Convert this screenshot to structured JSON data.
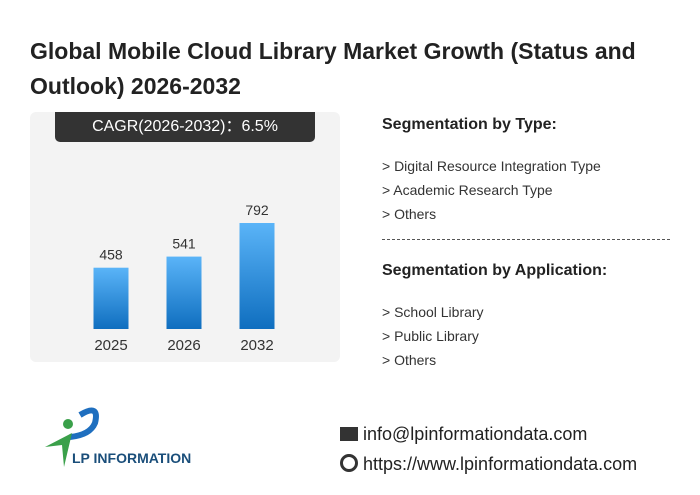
{
  "title": "Global Mobile Cloud Library Market Growth (Status and Outlook) 2026-2032",
  "cagr_label": "CAGR(2026-2032)：6.5%",
  "chart_data": {
    "type": "bar",
    "categories": [
      "2025",
      "2026",
      "2032"
    ],
    "values": [
      458,
      541,
      792
    ],
    "title": "",
    "xlabel": "",
    "ylabel": "",
    "ylim": [
      0,
      900
    ],
    "colors": {
      "top": "#5ab4f8",
      "bottom": "#0f6ebf"
    }
  },
  "segmentation_type": {
    "heading": "Segmentation by Type:",
    "items": [
      "> Digital Resource Integration Type",
      "> Academic Research Type",
      "> Others"
    ]
  },
  "segmentation_application": {
    "heading": "Segmentation by Application:",
    "items": [
      "> School Library",
      "> Public Library",
      "> Others"
    ]
  },
  "logo_text": "LP INFORMATION",
  "contact": {
    "email": "info@lpinformationdata.com",
    "website": "https://www.lpinformationdata.com"
  },
  "watermark": "LP INFORMATION"
}
